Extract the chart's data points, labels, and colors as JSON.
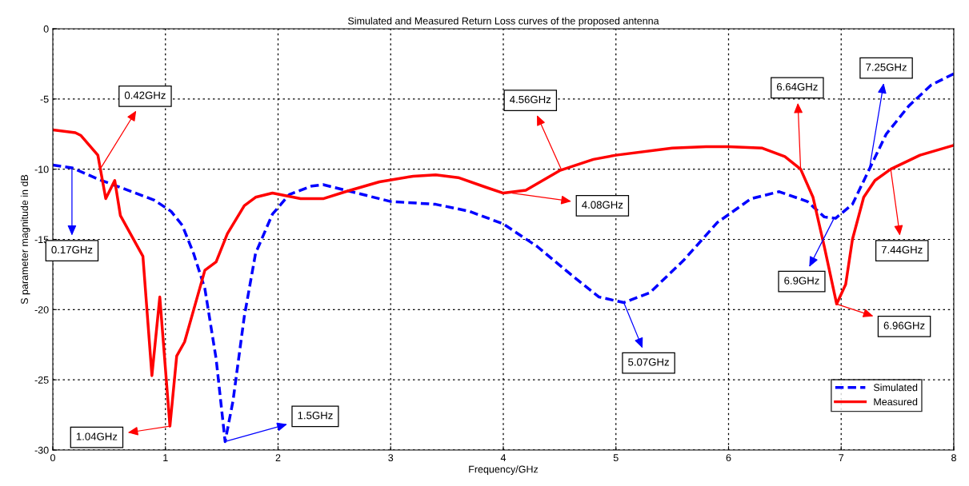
{
  "chart_data": {
    "type": "line",
    "title": "Simulated and Measured Return Loss curves of the proposed antenna",
    "xlabel": "Frequency/GHz",
    "ylabel": "S parameter magnitude in dB",
    "xlim": [
      0,
      8
    ],
    "ylim": [
      -30,
      0
    ],
    "xticks": [
      0,
      1,
      2,
      3,
      4,
      5,
      6,
      7,
      8
    ],
    "yticks": [
      -30,
      -25,
      -20,
      -15,
      -10,
      -5,
      0
    ],
    "grid": true,
    "legend": "bottom right",
    "series": [
      {
        "name": "Simulated",
        "color": "#0000ff",
        "line_style": "dashed",
        "x": [
          0,
          0.17,
          0.4,
          0.6,
          0.9,
          1.05,
          1.15,
          1.25,
          1.35,
          1.45,
          1.53,
          1.6,
          1.7,
          1.8,
          1.95,
          2.1,
          2.3,
          2.4,
          2.6,
          3.0,
          3.4,
          3.7,
          4.0,
          4.3,
          4.6,
          4.85,
          5.07,
          5.3,
          5.6,
          5.9,
          6.2,
          6.45,
          6.7,
          6.85,
          6.95,
          7.1,
          7.25,
          7.4,
          7.6,
          7.8,
          8.0
        ],
        "values": [
          -9.7,
          -9.9,
          -10.7,
          -11.3,
          -12.2,
          -13.0,
          -14.0,
          -16.0,
          -18.5,
          -23.5,
          -29.4,
          -26.5,
          -20.5,
          -16.0,
          -13.2,
          -11.8,
          -11.2,
          -11.1,
          -11.5,
          -12.3,
          -12.5,
          -13.0,
          -13.9,
          -15.5,
          -17.5,
          -19.1,
          -19.5,
          -18.8,
          -16.5,
          -13.8,
          -12.1,
          -11.6,
          -12.3,
          -13.4,
          -13.5,
          -12.5,
          -10.0,
          -7.5,
          -5.5,
          -4.0,
          -3.2
        ]
      },
      {
        "name": "Measured",
        "color": "#ff0000",
        "line_style": "solid",
        "x": [
          0,
          0.2,
          0.25,
          0.4,
          0.47,
          0.55,
          0.6,
          0.8,
          0.88,
          0.95,
          1.04,
          1.1,
          1.17,
          1.35,
          1.45,
          1.55,
          1.7,
          1.8,
          1.95,
          2.2,
          2.4,
          2.6,
          2.9,
          3.2,
          3.4,
          3.6,
          3.85,
          4.0,
          4.2,
          4.5,
          4.8,
          5.0,
          5.5,
          5.8,
          6.0,
          6.3,
          6.5,
          6.64,
          6.75,
          6.85,
          6.96,
          7.04,
          7.1,
          7.2,
          7.3,
          7.44,
          7.7,
          8.0
        ],
        "values": [
          -7.2,
          -7.4,
          -7.6,
          -9.0,
          -12.1,
          -10.8,
          -13.3,
          -16.2,
          -24.7,
          -19.1,
          -28.3,
          -23.3,
          -22.3,
          -17.2,
          -16.6,
          -14.6,
          -12.6,
          -12.0,
          -11.7,
          -12.1,
          -12.1,
          -11.6,
          -10.9,
          -10.5,
          -10.4,
          -10.6,
          -11.3,
          -11.7,
          -11.5,
          -10.1,
          -9.3,
          -9.0,
          -8.5,
          -8.4,
          -8.4,
          -8.5,
          -9.1,
          -10.0,
          -12.0,
          -15.5,
          -19.6,
          -18.2,
          -15.0,
          -12.0,
          -10.8,
          -10.0,
          -9.0,
          -8.3
        ]
      }
    ],
    "annotations": [
      {
        "text": "0.42GHz",
        "x": 0.42,
        "y": -10.0
      },
      {
        "text": "0.17GHz",
        "x": 0.17,
        "y": -9.9
      },
      {
        "text": "1.04GHz",
        "x": 1.04,
        "y": -28.3
      },
      {
        "text": "1.5GHz",
        "x": 1.53,
        "y": -29.4
      },
      {
        "text": "4.08GHz",
        "x": 4.08,
        "y": -11.7
      },
      {
        "text": "4.56GHz",
        "x": 4.52,
        "y": -10.1
      },
      {
        "text": "5.07GHz",
        "x": 5.07,
        "y": -19.5
      },
      {
        "text": "6.64GHz",
        "x": 6.64,
        "y": -10.0
      },
      {
        "text": "7.25GHz",
        "x": 7.25,
        "y": -10.0
      },
      {
        "text": "6.9GHz",
        "x": 6.93,
        "y": -13.6
      },
      {
        "text": "6.96GHz",
        "x": 6.96,
        "y": -19.6
      },
      {
        "text": "7.44GHz",
        "x": 7.44,
        "y": -10.0
      }
    ]
  }
}
